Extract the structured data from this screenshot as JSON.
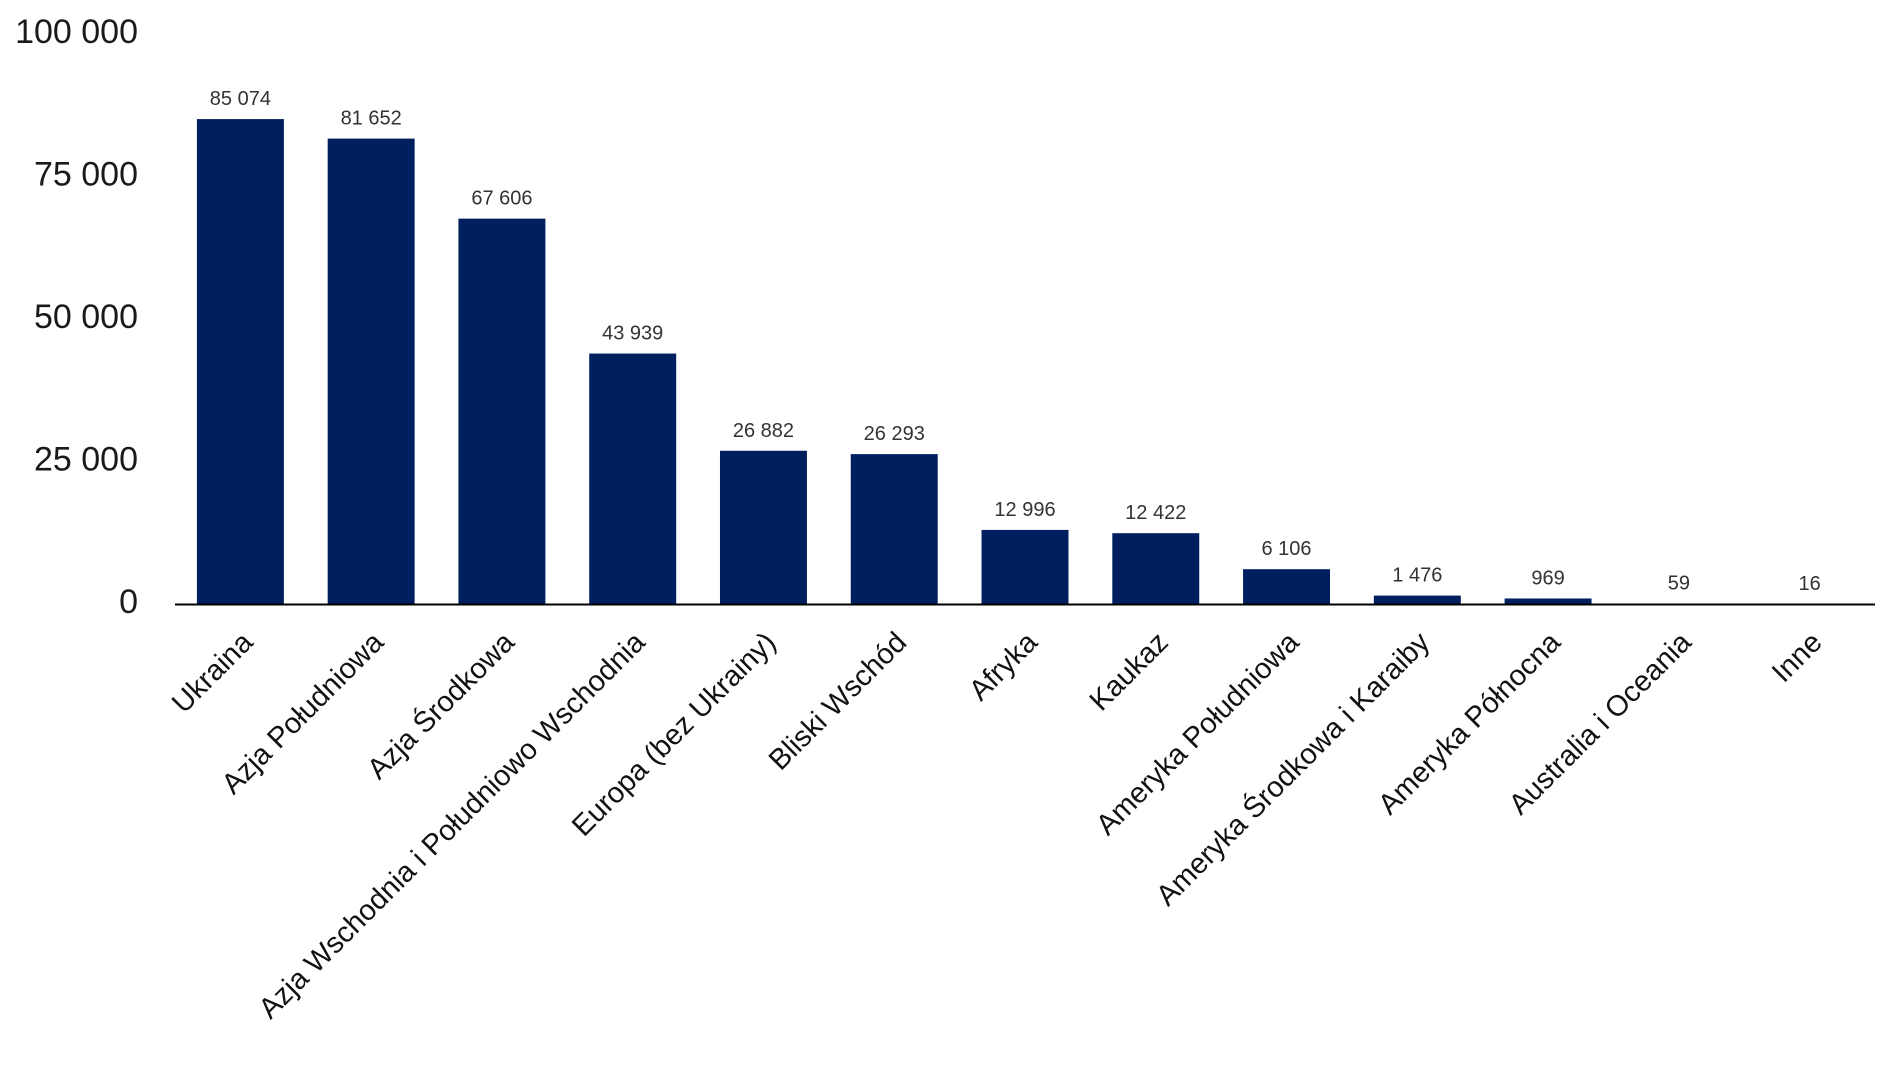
{
  "chart_data": {
    "type": "bar",
    "categories": [
      "Ukraina",
      "Azja Południowa",
      "Azja Środkowa",
      "Azja Wschodnia i Południowo Wschodnia",
      "Europa (bez Ukrainy)",
      "Bliski Wschód",
      "Afryka",
      "Kaukaz",
      "Ameryka Południowa",
      "Ameryka Środkowa i Karaiby",
      "Ameryka Północna",
      "Australia i Oceania",
      "Inne"
    ],
    "values": [
      85074,
      81652,
      67606,
      43939,
      26882,
      26293,
      12996,
      12422,
      6106,
      1476,
      969,
      59,
      16
    ],
    "data_labels": [
      "85 074",
      "81 652",
      "67 606",
      "43 939",
      "26 882",
      "26 293",
      "12 996",
      "12 422",
      "6 106",
      "1 476",
      "969",
      "59",
      "16"
    ],
    "y_ticks": [
      0,
      25000,
      50000,
      75000,
      100000
    ],
    "y_tick_labels": [
      "0",
      "25 000",
      "50 000",
      "75 000",
      "100 000"
    ],
    "ylim": [
      0,
      100000
    ],
    "grid": false,
    "legend": "none",
    "bar_color": "#001f5f",
    "axis_color": "#000000"
  }
}
